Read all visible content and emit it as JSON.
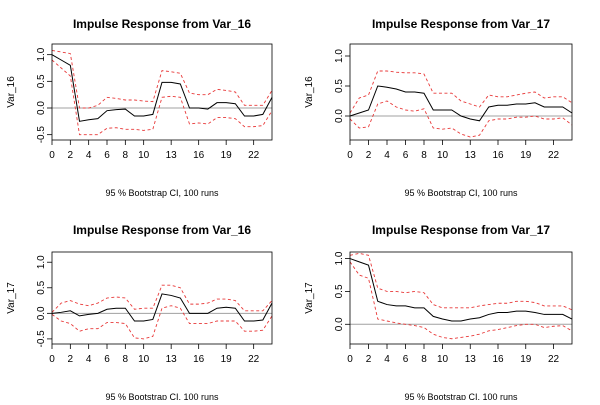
{
  "chart_data": [
    {
      "type": "line",
      "title": "Impulse Response from Var_16",
      "ylabel": "Var_16",
      "xlabel": "95 % Bootstrap CI,  100 runs",
      "xlim": [
        0,
        24
      ],
      "ylim": [
        -0.6,
        1.2
      ],
      "x_ticks": [
        0,
        2,
        4,
        6,
        8,
        10,
        13,
        16,
        19,
        22
      ],
      "y_ticks": [
        -0.5,
        0.0,
        0.5,
        1.0
      ],
      "x_tick_labels": [
        "0",
        "2",
        "4",
        "6",
        "8",
        "10",
        "13",
        "16",
        "19",
        "22"
      ],
      "y_tick_labels": [
        "-0.5",
        "0.0",
        "0.5",
        "1.0"
      ],
      "zero_line": true,
      "line_colors": {
        "estimate": "#000000",
        "bands": "#e83838",
        "zero": "#a0a0a0"
      },
      "x": [
        0,
        1,
        2,
        3,
        4,
        5,
        6,
        7,
        8,
        9,
        10,
        11,
        12,
        13,
        14,
        15,
        16,
        17,
        18,
        19,
        20,
        21,
        22,
        23,
        24
      ],
      "series": [
        {
          "role": "estimate",
          "values": [
            1.0,
            0.9,
            0.8,
            -0.25,
            -0.22,
            -0.2,
            -0.05,
            -0.03,
            -0.02,
            -0.15,
            -0.15,
            -0.12,
            0.48,
            0.48,
            0.45,
            0.0,
            0.0,
            -0.02,
            0.1,
            0.1,
            0.08,
            -0.15,
            -0.15,
            -0.12,
            0.2
          ]
        },
        {
          "role": "lower",
          "values": [
            0.9,
            0.75,
            0.6,
            -0.5,
            -0.5,
            -0.5,
            -0.38,
            -0.37,
            -0.4,
            -0.4,
            -0.42,
            -0.4,
            0.2,
            0.22,
            0.2,
            -0.3,
            -0.28,
            -0.3,
            -0.18,
            -0.18,
            -0.2,
            -0.35,
            -0.35,
            -0.33,
            -0.05
          ]
        },
        {
          "role": "upper",
          "values": [
            1.08,
            1.05,
            1.02,
            0.0,
            0.0,
            0.05,
            0.2,
            0.18,
            0.15,
            0.15,
            0.13,
            0.12,
            0.7,
            0.68,
            0.65,
            0.28,
            0.25,
            0.25,
            0.35,
            0.33,
            0.3,
            0.05,
            0.05,
            0.05,
            0.33
          ]
        }
      ]
    },
    {
      "type": "line",
      "title": "Impulse Response from Var_17",
      "ylabel": "Var_16",
      "xlabel": "95 % Bootstrap CI,  100 runs",
      "xlim": [
        0,
        24
      ],
      "ylim": [
        -0.4,
        1.2
      ],
      "x_ticks": [
        0,
        2,
        4,
        6,
        8,
        10,
        13,
        16,
        19,
        22
      ],
      "y_ticks": [
        0.0,
        0.5,
        1.0
      ],
      "x_tick_labels": [
        "0",
        "2",
        "4",
        "6",
        "8",
        "10",
        "13",
        "16",
        "19",
        "22"
      ],
      "y_tick_labels": [
        "0.0",
        "0.5",
        "1.0"
      ],
      "zero_line": true,
      "line_colors": {
        "estimate": "#000000",
        "bands": "#e83838",
        "zero": "#a0a0a0"
      },
      "x": [
        0,
        1,
        2,
        3,
        4,
        5,
        6,
        7,
        8,
        9,
        10,
        11,
        12,
        13,
        14,
        15,
        16,
        17,
        18,
        19,
        20,
        21,
        22,
        23,
        24
      ],
      "series": [
        {
          "role": "estimate",
          "values": [
            0.0,
            0.05,
            0.1,
            0.5,
            0.48,
            0.45,
            0.4,
            0.4,
            0.38,
            0.1,
            0.1,
            0.1,
            0.0,
            -0.05,
            -0.08,
            0.15,
            0.18,
            0.18,
            0.2,
            0.2,
            0.22,
            0.15,
            0.15,
            0.15,
            0.05
          ]
        },
        {
          "role": "lower",
          "values": [
            -0.05,
            -0.2,
            -0.18,
            0.2,
            0.25,
            0.15,
            0.1,
            0.08,
            0.12,
            -0.2,
            -0.22,
            -0.2,
            -0.3,
            -0.35,
            -0.32,
            -0.08,
            -0.05,
            -0.05,
            -0.02,
            -0.02,
            0.0,
            -0.05,
            -0.05,
            -0.03,
            -0.15
          ]
        },
        {
          "role": "upper",
          "values": [
            0.05,
            0.3,
            0.35,
            0.75,
            0.75,
            0.73,
            0.72,
            0.72,
            0.7,
            0.38,
            0.38,
            0.38,
            0.25,
            0.2,
            0.15,
            0.35,
            0.32,
            0.32,
            0.35,
            0.38,
            0.4,
            0.3,
            0.32,
            0.32,
            0.22
          ]
        }
      ]
    },
    {
      "type": "line",
      "title": "Impulse Response from Var_16",
      "ylabel": "Var_17",
      "xlabel": "95 % Bootstrap CI,  100 runs",
      "xlim": [
        0,
        24
      ],
      "ylim": [
        -0.6,
        1.2
      ],
      "x_ticks": [
        0,
        2,
        4,
        6,
        8,
        10,
        13,
        16,
        19,
        22
      ],
      "y_ticks": [
        -0.5,
        0.0,
        0.5,
        1.0
      ],
      "x_tick_labels": [
        "0",
        "2",
        "4",
        "6",
        "8",
        "10",
        "13",
        "16",
        "19",
        "22"
      ],
      "y_tick_labels": [
        "-0.5",
        "0.0",
        "0.5",
        "1.0"
      ],
      "zero_line": true,
      "line_colors": {
        "estimate": "#000000",
        "bands": "#e83838",
        "zero": "#a0a0a0"
      },
      "x": [
        0,
        1,
        2,
        3,
        4,
        5,
        6,
        7,
        8,
        9,
        10,
        11,
        12,
        13,
        14,
        15,
        16,
        17,
        18,
        19,
        20,
        21,
        22,
        23,
        24
      ],
      "series": [
        {
          "role": "estimate",
          "values": [
            0.0,
            0.02,
            0.05,
            -0.05,
            -0.02,
            0.0,
            0.08,
            0.1,
            0.1,
            -0.15,
            -0.15,
            -0.12,
            0.38,
            0.35,
            0.3,
            0.0,
            0.0,
            0.0,
            0.1,
            0.12,
            0.1,
            -0.15,
            -0.15,
            -0.13,
            0.2
          ]
        },
        {
          "role": "lower",
          "values": [
            -0.02,
            -0.15,
            -0.2,
            -0.35,
            -0.3,
            -0.3,
            -0.18,
            -0.18,
            -0.2,
            -0.48,
            -0.5,
            -0.45,
            0.1,
            0.15,
            0.1,
            -0.2,
            -0.2,
            -0.2,
            -0.15,
            -0.15,
            -0.15,
            -0.35,
            -0.35,
            -0.33,
            -0.05
          ]
        },
        {
          "role": "upper",
          "values": [
            0.02,
            0.2,
            0.25,
            0.18,
            0.15,
            0.2,
            0.3,
            0.32,
            0.3,
            0.08,
            0.1,
            0.1,
            0.55,
            0.55,
            0.5,
            0.18,
            0.18,
            0.2,
            0.28,
            0.28,
            0.25,
            0.05,
            0.05,
            0.05,
            0.25
          ]
        }
      ]
    },
    {
      "type": "line",
      "title": "Impulse Response from Var_17",
      "ylabel": "Var_17",
      "xlabel": "95 % Bootstrap CI,  100 runs",
      "xlim": [
        0,
        24
      ],
      "ylim": [
        -0.3,
        1.1
      ],
      "x_ticks": [
        0,
        2,
        4,
        6,
        8,
        10,
        13,
        16,
        19,
        22
      ],
      "y_ticks": [
        0.0,
        0.5,
        1.0
      ],
      "x_tick_labels": [
        "0",
        "2",
        "4",
        "6",
        "8",
        "10",
        "13",
        "16",
        "19",
        "22"
      ],
      "y_tick_labels": [
        "0.0",
        "0.5",
        "1.0"
      ],
      "zero_line": true,
      "line_colors": {
        "estimate": "#000000",
        "bands": "#e83838",
        "zero": "#a0a0a0"
      },
      "x": [
        0,
        1,
        2,
        3,
        4,
        5,
        6,
        7,
        8,
        9,
        10,
        11,
        12,
        13,
        14,
        15,
        16,
        17,
        18,
        19,
        20,
        21,
        22,
        23,
        24
      ],
      "series": [
        {
          "role": "estimate",
          "values": [
            1.0,
            0.95,
            0.9,
            0.35,
            0.3,
            0.28,
            0.28,
            0.25,
            0.25,
            0.12,
            0.08,
            0.05,
            0.05,
            0.08,
            0.1,
            0.15,
            0.18,
            0.18,
            0.2,
            0.2,
            0.18,
            0.15,
            0.15,
            0.15,
            0.08
          ]
        },
        {
          "role": "lower",
          "values": [
            0.95,
            0.75,
            0.7,
            0.08,
            0.05,
            0.02,
            0.0,
            -0.02,
            -0.05,
            -0.15,
            -0.2,
            -0.22,
            -0.2,
            -0.18,
            -0.15,
            -0.1,
            -0.08,
            -0.05,
            -0.02,
            0.0,
            0.0,
            -0.05,
            -0.03,
            -0.02,
            -0.1
          ]
        },
        {
          "role": "upper",
          "values": [
            1.05,
            1.08,
            1.05,
            0.55,
            0.5,
            0.5,
            0.48,
            0.5,
            0.48,
            0.3,
            0.25,
            0.25,
            0.25,
            0.25,
            0.28,
            0.3,
            0.32,
            0.32,
            0.35,
            0.35,
            0.33,
            0.28,
            0.28,
            0.28,
            0.22
          ]
        }
      ]
    }
  ]
}
